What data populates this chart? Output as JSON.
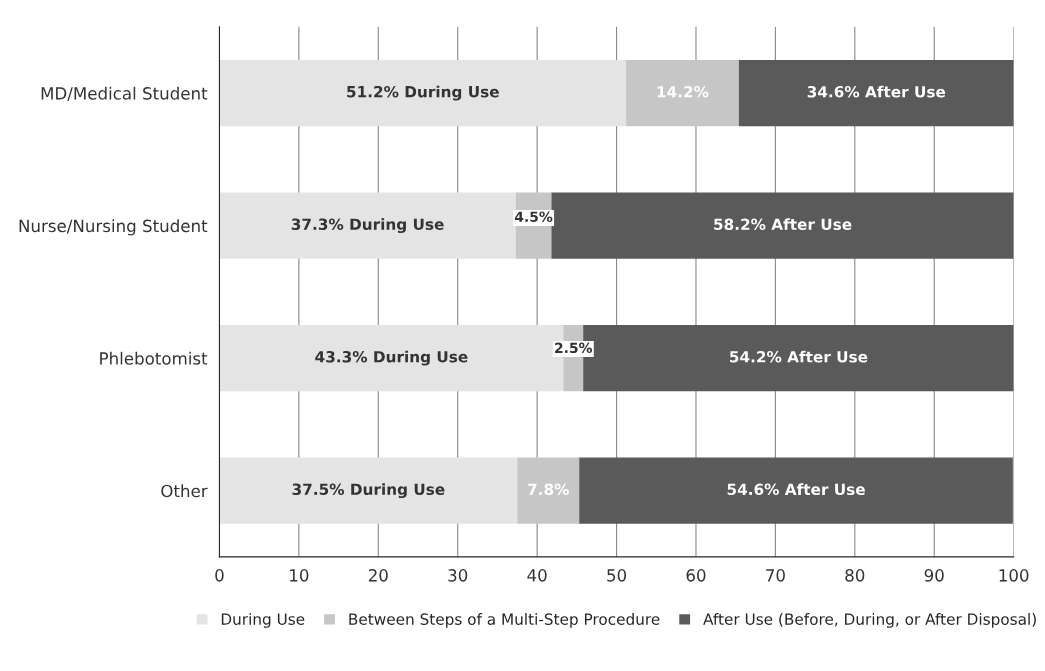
{
  "chart_data": {
    "type": "bar",
    "orientation": "horizontal",
    "stacked": true,
    "categories": [
      "MD/Medical Student",
      "Nurse/Nursing Student",
      "Phlebotomist",
      "Other"
    ],
    "series": [
      {
        "name": "During Use",
        "color": "#e4e4e4",
        "values": [
          51.2,
          37.3,
          43.3,
          37.5
        ],
        "value_labels": [
          "51.2% During Use",
          "37.3% During Use",
          "43.3% During Use",
          "37.5% During Use"
        ]
      },
      {
        "name": "Between Steps of a Multi-Step Procedure",
        "color": "#c6c6c6",
        "values": [
          14.2,
          4.5,
          2.5,
          7.8
        ],
        "value_labels": [
          "14.2%",
          "4.5%",
          "2.5%",
          "7.8%"
        ]
      },
      {
        "name": "After Use (Before, During, or After Disposal)",
        "color": "#5a5a5a",
        "values": [
          34.6,
          58.2,
          54.2,
          54.6
        ],
        "value_labels": [
          "34.6% After Use",
          "58.2% After Use",
          "54.2% After Use",
          "54.6% After Use"
        ]
      }
    ],
    "xlim": [
      0,
      100
    ],
    "xticks": [
      0,
      10,
      20,
      30,
      40,
      50,
      60,
      70,
      80,
      90,
      100
    ],
    "grid": "x",
    "legend": "bottom"
  }
}
